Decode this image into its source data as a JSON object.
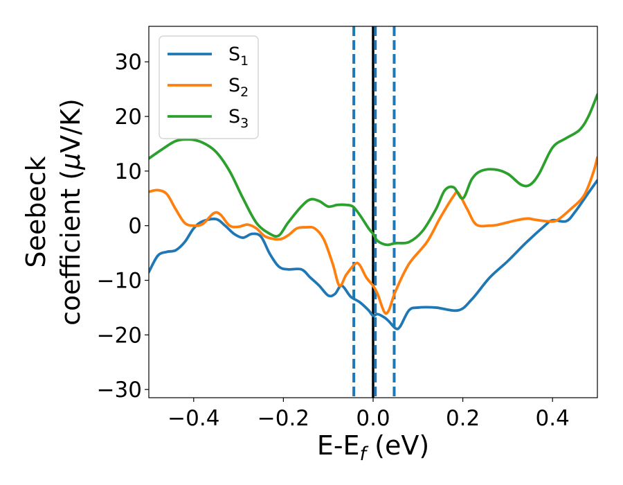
{
  "chart_data": {
    "type": "line",
    "xlabel": "E-E",
    "xlabel_sub": "f",
    "xlabel_unit": " (eV)",
    "ylabel_line1": "Seebeck",
    "ylabel_line2_pre": "coefficient  (",
    "ylabel_mu": "μ",
    "ylabel_line2_post": "V/K)",
    "xlim": [
      -0.5,
      0.5
    ],
    "ylim": [
      -31.5,
      36.5
    ],
    "xticks": [
      -0.4,
      -0.2,
      0.0,
      0.2,
      0.4
    ],
    "xtick_labels": [
      "−0.4",
      "−0.2",
      "0.0",
      "0.2",
      "0.4"
    ],
    "yticks": [
      -30,
      -20,
      -10,
      0,
      10,
      20,
      30
    ],
    "ytick_labels": [
      "−30",
      "−20",
      "−10",
      "0",
      "10",
      "20",
      "30"
    ],
    "grid": false,
    "legend_position": "top-left",
    "vlines": [
      {
        "x": 0.0,
        "style": "solid",
        "color": "#000000"
      },
      {
        "x": -0.043,
        "style": "dashed",
        "color": "#1f77b4"
      },
      {
        "x": 0.005,
        "style": "dashed",
        "color": "#1f77b4"
      },
      {
        "x": 0.047,
        "style": "dashed",
        "color": "#1f77b4"
      }
    ],
    "series": [
      {
        "name": "S",
        "name_sub": "1",
        "color": "#1f77b4",
        "points": [
          [
            -0.5,
            -8.5
          ],
          [
            -0.48,
            -5.5
          ],
          [
            -0.46,
            -4.8
          ],
          [
            -0.44,
            -4.5
          ],
          [
            -0.42,
            -3
          ],
          [
            -0.4,
            -0.5
          ],
          [
            -0.38,
            0.8
          ],
          [
            -0.35,
            1.2
          ],
          [
            -0.33,
            0
          ],
          [
            -0.31,
            -1.5
          ],
          [
            -0.29,
            -2.2
          ],
          [
            -0.27,
            -1.5
          ],
          [
            -0.25,
            -2
          ],
          [
            -0.23,
            -5.2
          ],
          [
            -0.21,
            -7.5
          ],
          [
            -0.19,
            -8
          ],
          [
            -0.16,
            -8
          ],
          [
            -0.14,
            -9.5
          ],
          [
            -0.12,
            -11
          ],
          [
            -0.1,
            -12.8
          ],
          [
            -0.085,
            -12.5
          ],
          [
            -0.07,
            -11
          ],
          [
            -0.05,
            -13
          ],
          [
            -0.03,
            -14
          ],
          [
            -0.01,
            -15.5
          ],
          [
            0.0,
            -16.5
          ],
          [
            0.01,
            -16.2
          ],
          [
            0.025,
            -16.8
          ],
          [
            0.035,
            -17.5
          ],
          [
            0.05,
            -18.8
          ],
          [
            0.06,
            -18.5
          ],
          [
            0.08,
            -15.5
          ],
          [
            0.1,
            -15
          ],
          [
            0.14,
            -15
          ],
          [
            0.19,
            -15.5
          ],
          [
            0.22,
            -13.5
          ],
          [
            0.26,
            -9.5
          ],
          [
            0.3,
            -6.5
          ],
          [
            0.34,
            -3.2
          ],
          [
            0.38,
            -0.2
          ],
          [
            0.4,
            1
          ],
          [
            0.43,
            0.8
          ],
          [
            0.45,
            2.5
          ],
          [
            0.48,
            6
          ],
          [
            0.5,
            8.3
          ]
        ]
      },
      {
        "name": "S",
        "name_sub": "2",
        "color": "#ff7f0e",
        "points": [
          [
            -0.5,
            6.2
          ],
          [
            -0.48,
            6.5
          ],
          [
            -0.46,
            5.8
          ],
          [
            -0.44,
            3
          ],
          [
            -0.42,
            0.5
          ],
          [
            -0.4,
            0
          ],
          [
            -0.38,
            0.3
          ],
          [
            -0.355,
            2.3
          ],
          [
            -0.34,
            2
          ],
          [
            -0.32,
            0
          ],
          [
            -0.3,
            -0.2
          ],
          [
            -0.28,
            0.2
          ],
          [
            -0.26,
            -0.5
          ],
          [
            -0.24,
            -2
          ],
          [
            -0.21,
            -2.5
          ],
          [
            -0.19,
            -1.8
          ],
          [
            -0.17,
            -0.5
          ],
          [
            -0.15,
            -0.3
          ],
          [
            -0.13,
            -0.5
          ],
          [
            -0.11,
            -2.5
          ],
          [
            -0.09,
            -7
          ],
          [
            -0.075,
            -11
          ],
          [
            -0.06,
            -9
          ],
          [
            -0.04,
            -7
          ],
          [
            -0.03,
            -7.2
          ],
          [
            -0.015,
            -9.5
          ],
          [
            0.0,
            -11
          ],
          [
            0.01,
            -12.5
          ],
          [
            0.025,
            -15.8
          ],
          [
            0.035,
            -15.5
          ],
          [
            0.05,
            -12
          ],
          [
            0.08,
            -7
          ],
          [
            0.12,
            -3
          ],
          [
            0.15,
            1.5
          ],
          [
            0.18,
            5.5
          ],
          [
            0.19,
            6
          ],
          [
            0.21,
            3
          ],
          [
            0.23,
            0.2
          ],
          [
            0.26,
            0
          ],
          [
            0.28,
            0.2
          ],
          [
            0.32,
            1
          ],
          [
            0.345,
            1.3
          ],
          [
            0.36,
            1.1
          ],
          [
            0.39,
            0.8
          ],
          [
            0.41,
            1
          ],
          [
            0.44,
            3
          ],
          [
            0.47,
            5.5
          ],
          [
            0.49,
            9.5
          ],
          [
            0.5,
            12.5
          ]
        ]
      },
      {
        "name": "S",
        "name_sub": "3",
        "color": "#2ca02c",
        "points": [
          [
            -0.5,
            12.3
          ],
          [
            -0.47,
            14
          ],
          [
            -0.44,
            15.5
          ],
          [
            -0.41,
            15.8
          ],
          [
            -0.38,
            15.2
          ],
          [
            -0.35,
            13.5
          ],
          [
            -0.32,
            10
          ],
          [
            -0.29,
            5
          ],
          [
            -0.26,
            0.5
          ],
          [
            -0.23,
            -1.5
          ],
          [
            -0.21,
            -1.8
          ],
          [
            -0.19,
            0.5
          ],
          [
            -0.16,
            3.5
          ],
          [
            -0.14,
            4.8
          ],
          [
            -0.12,
            4.5
          ],
          [
            -0.1,
            3.5
          ],
          [
            -0.08,
            3.8
          ],
          [
            -0.06,
            3.8
          ],
          [
            -0.045,
            3.5
          ],
          [
            -0.03,
            2
          ],
          [
            -0.01,
            -0.5
          ],
          [
            0.0,
            -1.5
          ],
          [
            0.01,
            -2.8
          ],
          [
            0.03,
            -3.5
          ],
          [
            0.05,
            -3.2
          ],
          [
            0.08,
            -3
          ],
          [
            0.11,
            -1
          ],
          [
            0.14,
            3
          ],
          [
            0.16,
            6.5
          ],
          [
            0.18,
            7
          ],
          [
            0.2,
            5
          ],
          [
            0.22,
            8.5
          ],
          [
            0.24,
            10
          ],
          [
            0.27,
            10.3
          ],
          [
            0.3,
            9.5
          ],
          [
            0.33,
            7.5
          ],
          [
            0.35,
            7.5
          ],
          [
            0.37,
            9.5
          ],
          [
            0.4,
            14.3
          ],
          [
            0.43,
            16
          ],
          [
            0.46,
            17.5
          ],
          [
            0.48,
            20
          ],
          [
            0.5,
            24
          ]
        ]
      }
    ]
  }
}
